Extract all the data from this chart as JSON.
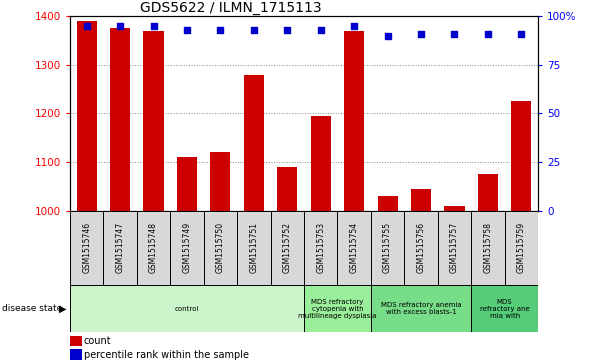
{
  "title": "GDS5622 / ILMN_1715113",
  "samples": [
    "GSM1515746",
    "GSM1515747",
    "GSM1515748",
    "GSM1515749",
    "GSM1515750",
    "GSM1515751",
    "GSM1515752",
    "GSM1515753",
    "GSM1515754",
    "GSM1515755",
    "GSM1515756",
    "GSM1515757",
    "GSM1515758",
    "GSM1515759"
  ],
  "counts": [
    1390,
    1375,
    1370,
    1110,
    1120,
    1280,
    1090,
    1195,
    1370,
    1030,
    1045,
    1010,
    1075,
    1225
  ],
  "percentile_values": [
    95,
    95,
    95,
    93,
    93,
    93,
    93,
    93,
    95,
    90,
    91,
    91,
    91,
    91
  ],
  "ylim_left": [
    1000,
    1400
  ],
  "ylim_right": [
    0,
    100
  ],
  "yticks_left": [
    1000,
    1100,
    1200,
    1300,
    1400
  ],
  "yticks_right": [
    0,
    25,
    50,
    75,
    100
  ],
  "bar_color": "#cc0000",
  "dot_color": "#0000cc",
  "sample_box_color": "#d8d8d8",
  "disease_groups": [
    {
      "label": "control",
      "start": 0,
      "end": 7,
      "color": "#d8f8d8"
    },
    {
      "label": "MDS refractory\ncytopenia with\nmultilineage dysplasia",
      "start": 7,
      "end": 9,
      "color": "#aaeebb"
    },
    {
      "label": "MDS refractory anemia\nwith excess blasts-1",
      "start": 9,
      "end": 12,
      "color": "#88dd99"
    },
    {
      "label": "MDS\nrefractory ane\nmia with",
      "start": 12,
      "end": 14,
      "color": "#66cc88"
    }
  ],
  "legend_items": [
    {
      "color": "#cc0000",
      "label": "count"
    },
    {
      "color": "#0000cc",
      "label": "percentile rank within the sample"
    }
  ]
}
